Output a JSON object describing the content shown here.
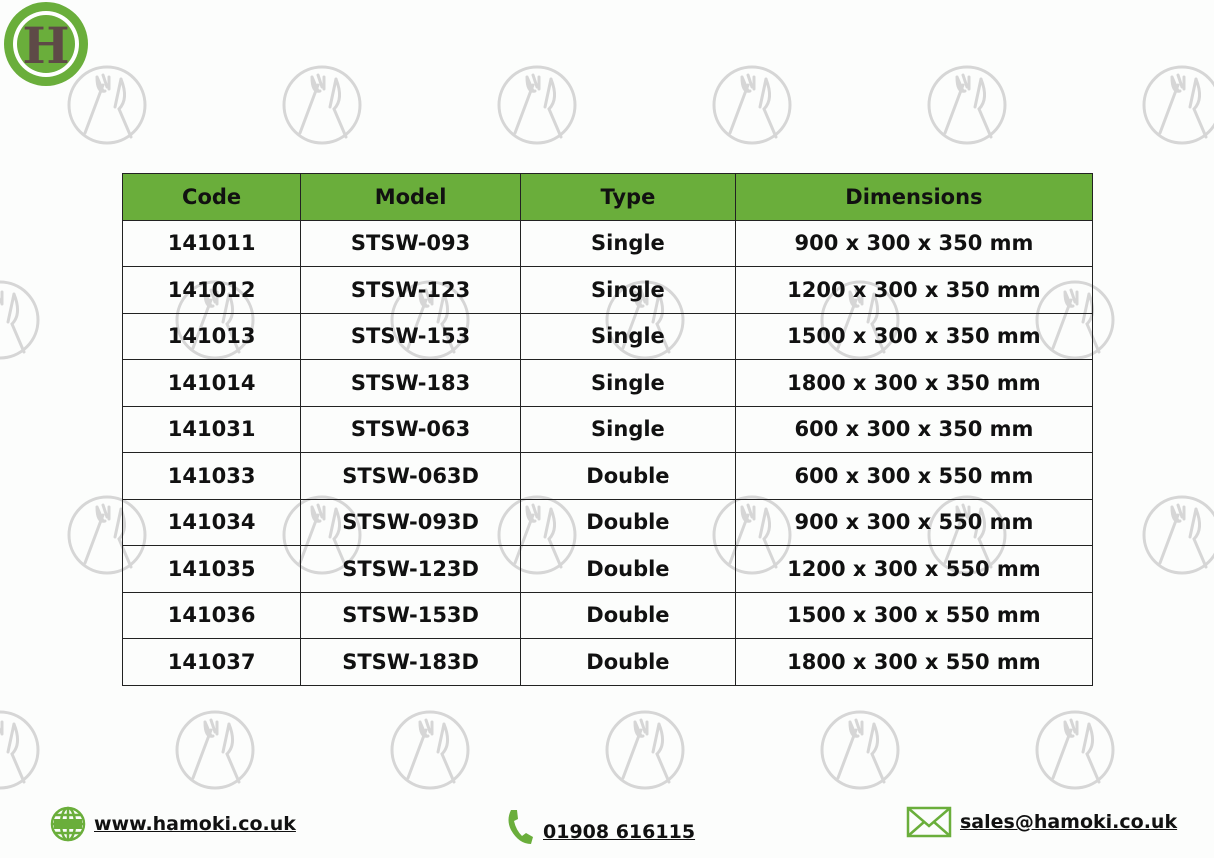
{
  "brand": {
    "logo_letter": "H",
    "accent": "#6aae3b",
    "logo_text_color": "#5e4a47"
  },
  "table": {
    "headers": [
      "Code",
      "Model",
      "Type",
      "Dimensions"
    ],
    "rows": [
      [
        "141011",
        "STSW-093",
        "Single",
        "900 x 300 x 350 mm"
      ],
      [
        "141012",
        "STSW-123",
        "Single",
        "1200 x 300 x 350 mm"
      ],
      [
        "141013",
        "STSW-153",
        "Single",
        "1500 x 300 x 350 mm"
      ],
      [
        "141014",
        "STSW-183",
        "Single",
        "1800 x 300 x 350 mm"
      ],
      [
        "141031",
        "STSW-063",
        "Single",
        "600 x 300 x 350 mm"
      ],
      [
        "141033",
        "STSW-063D",
        "Double",
        "600 x 300 x 550 mm"
      ],
      [
        "141034",
        "STSW-093D",
        "Double",
        "900 x 300 x 550 mm"
      ],
      [
        "141035",
        "STSW-123D",
        "Double",
        "1200 x 300 x 550 mm"
      ],
      [
        "141036",
        "STSW-153D",
        "Double",
        "1500 x 300 x 550 mm"
      ],
      [
        "141037",
        "STSW-183D",
        "Double",
        "1800 x 300 x 550 mm"
      ]
    ]
  },
  "footer": {
    "website": "www.hamoki.co.uk",
    "phone": "01908 616115",
    "email": "sales@hamoki.co.uk",
    "globe_label": "www"
  }
}
